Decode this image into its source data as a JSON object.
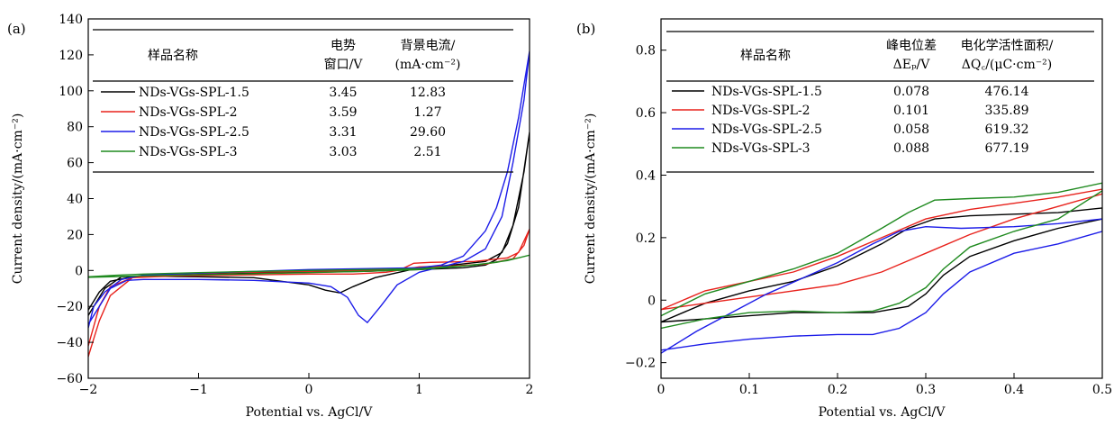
{
  "chart_data": [
    {
      "type": "line",
      "panel_label": "(a)",
      "xlabel": "Potential vs. AgCl/V",
      "ylabel": "Current density/(mA·cm⁻²)",
      "xlim": [
        -2,
        2
      ],
      "ylim": [
        -60,
        140
      ],
      "x_ticks": [
        -2,
        -1,
        0,
        1,
        2
      ],
      "x_tick_labels": [
        "−2",
        "−1",
        "0",
        "1",
        "2"
      ],
      "y_ticks": [
        -60,
        -40,
        -20,
        0,
        20,
        40,
        60,
        80,
        100,
        120,
        140
      ],
      "y_tick_labels": [
        "−60",
        "−40",
        "−20",
        "0",
        "20",
        "40",
        "60",
        "80",
        "100",
        "120",
        "140"
      ],
      "grid": false,
      "table": {
        "headers": [
          [
            "样品名称"
          ],
          [
            "电势",
            "窗口/V"
          ],
          [
            "背景电流/",
            "(mA·cm⁻²)"
          ]
        ],
        "rows": [
          {
            "name": "NDs-VGs-SPL-1.5",
            "v1": "3.45",
            "v2": "12.83",
            "color": "#000000"
          },
          {
            "name": "NDs-VGs-SPL-2",
            "v1": "3.59",
            "v2": "1.27",
            "color": "#e8221c"
          },
          {
            "name": "NDs-VGs-SPL-2.5",
            "v1": "3.31",
            "v2": "29.60",
            "color": "#1c1ce8"
          },
          {
            "name": "NDs-VGs-SPL-3",
            "v1": "3.03",
            "v2": "2.51",
            "color": "#1f8a1f"
          }
        ]
      },
      "series": [
        {
          "name": "NDs-VGs-SPL-1.5",
          "color": "#000000",
          "points": [
            [
              -2,
              -22
            ],
            [
              -1.9,
              -12
            ],
            [
              -1.8,
              -6
            ],
            [
              -1.6,
              -3.5
            ],
            [
              -1.0,
              -2.2
            ],
            [
              -0.5,
              -1.5
            ],
            [
              0,
              -1
            ],
            [
              0.5,
              -0.5
            ],
            [
              1.0,
              0.5
            ],
            [
              1.4,
              1.5
            ],
            [
              1.6,
              3
            ],
            [
              1.7,
              6
            ],
            [
              1.8,
              15
            ],
            [
              1.9,
              35
            ],
            [
              2,
              77
            ],
            [
              1.95,
              55
            ],
            [
              1.85,
              25
            ],
            [
              1.75,
              10
            ],
            [
              1.6,
              5
            ],
            [
              1.3,
              3
            ],
            [
              1.0,
              1.5
            ],
            [
              0.6,
              -4
            ],
            [
              0.4,
              -9
            ],
            [
              0.28,
              -12.5
            ],
            [
              0.15,
              -11
            ],
            [
              0,
              -8
            ],
            [
              -0.5,
              -4
            ],
            [
              -1.0,
              -3.5
            ],
            [
              -1.5,
              -3.2
            ],
            [
              -1.7,
              -3.5
            ],
            [
              -1.85,
              -10
            ],
            [
              -2,
              -25
            ]
          ]
        },
        {
          "name": "NDs-VGs-SPL-2",
          "color": "#e8221c",
          "points": [
            [
              -2,
              -48
            ],
            [
              -1.95,
              -38
            ],
            [
              -1.9,
              -28
            ],
            [
              -1.8,
              -14
            ],
            [
              -1.6,
              -4
            ],
            [
              -1.2,
              -2
            ],
            [
              -0.6,
              -1
            ],
            [
              0,
              -0.5
            ],
            [
              0.5,
              0
            ],
            [
              0.85,
              1
            ],
            [
              0.95,
              4
            ],
            [
              1.1,
              4.5
            ],
            [
              1.5,
              5
            ],
            [
              1.8,
              7
            ],
            [
              1.9,
              10
            ],
            [
              2,
              23
            ],
            [
              1.95,
              14
            ],
            [
              1.85,
              6.5
            ],
            [
              1.6,
              3.5
            ],
            [
              1.3,
              2.5
            ],
            [
              1.0,
              2
            ],
            [
              0.7,
              -1
            ],
            [
              0.4,
              -2
            ],
            [
              0,
              -2
            ],
            [
              -0.6,
              -2.5
            ],
            [
              -1.2,
              -3
            ],
            [
              -1.6,
              -4
            ],
            [
              -1.8,
              -9
            ],
            [
              -1.9,
              -20
            ],
            [
              -2,
              -42
            ]
          ]
        },
        {
          "name": "NDs-VGs-SPL-2.5",
          "color": "#1c1ce8",
          "points": [
            [
              -2,
              -32
            ],
            [
              -1.95,
              -20
            ],
            [
              -1.85,
              -12
            ],
            [
              -1.7,
              -5
            ],
            [
              -1.5,
              -2.5
            ],
            [
              -1.0,
              -1.5
            ],
            [
              0,
              0.5
            ],
            [
              0.5,
              1
            ],
            [
              1.0,
              1.5
            ],
            [
              1.2,
              3
            ],
            [
              1.4,
              8
            ],
            [
              1.6,
              22
            ],
            [
              1.7,
              35
            ],
            [
              1.8,
              55
            ],
            [
              1.9,
              85
            ],
            [
              2,
              122
            ],
            [
              1.95,
              95
            ],
            [
              1.85,
              60
            ],
            [
              1.75,
              30
            ],
            [
              1.6,
              12
            ],
            [
              1.4,
              5
            ],
            [
              1.2,
              2
            ],
            [
              1.0,
              -1
            ],
            [
              0.8,
              -8
            ],
            [
              0.65,
              -20
            ],
            [
              0.53,
              -29
            ],
            [
              0.45,
              -25
            ],
            [
              0.35,
              -15
            ],
            [
              0.2,
              -9
            ],
            [
              0,
              -7
            ],
            [
              -0.5,
              -5.5
            ],
            [
              -1.0,
              -5
            ],
            [
              -1.5,
              -5
            ],
            [
              -1.65,
              -5.5
            ],
            [
              -1.8,
              -10
            ],
            [
              -1.9,
              -20
            ],
            [
              -2,
              -30
            ]
          ]
        },
        {
          "name": "NDs-VGs-SPL-3",
          "color": "#1f8a1f",
          "points": [
            [
              -2,
              -3.5
            ],
            [
              -1.8,
              -2.8
            ],
            [
              -1.5,
              -2
            ],
            [
              -1.0,
              -1.2
            ],
            [
              -0.5,
              -0.5
            ],
            [
              0,
              0
            ],
            [
              0.5,
              0.5
            ],
            [
              1.0,
              1
            ],
            [
              1.5,
              3
            ],
            [
              1.8,
              5.5
            ],
            [
              2,
              8.5
            ],
            [
              1.9,
              7
            ],
            [
              1.7,
              4.5
            ],
            [
              1.4,
              2.5
            ],
            [
              1.0,
              0.5
            ],
            [
              0.5,
              -0.5
            ],
            [
              0,
              -1.2
            ],
            [
              -0.5,
              -1.8
            ],
            [
              -1.0,
              -2.4
            ],
            [
              -1.5,
              -3
            ],
            [
              -2,
              -3.8
            ]
          ]
        }
      ]
    },
    {
      "type": "line",
      "panel_label": "(b)",
      "xlabel": "Potential vs. AgCl/V",
      "ylabel": "Current density/(mA·cm⁻²)",
      "xlim": [
        0,
        0.5
      ],
      "ylim": [
        -0.25,
        0.9
      ],
      "x_ticks": [
        0,
        0.1,
        0.2,
        0.3,
        0.4,
        0.5
      ],
      "x_tick_labels": [
        "0",
        "0.1",
        "0.2",
        "0.3",
        "0.4",
        "0.5"
      ],
      "y_ticks": [
        -0.2,
        0,
        0.2,
        0.4,
        0.6,
        0.8
      ],
      "y_tick_labels": [
        "−0.2",
        "0",
        "0.2",
        "0.4",
        "0.6",
        "0.8"
      ],
      "grid": false,
      "table": {
        "headers": [
          [
            "样品名称"
          ],
          [
            "峰电位差",
            "ΔEₚ/V"
          ],
          [
            "电化学活性面积/",
            "ΔQ꜀/(μC·cm⁻²)"
          ]
        ],
        "rows": [
          {
            "name": "NDs-VGs-SPL-1.5",
            "v1": "0.078",
            "v2": "476.14",
            "color": "#000000"
          },
          {
            "name": "NDs-VGs-SPL-2",
            "v1": "0.101",
            "v2": "335.89",
            "color": "#e8221c"
          },
          {
            "name": "NDs-VGs-SPL-2.5",
            "v1": "0.058",
            "v2": "619.32",
            "color": "#1c1ce8"
          },
          {
            "name": "NDs-VGs-SPL-3",
            "v1": "0.088",
            "v2": "677.19",
            "color": "#1f8a1f"
          }
        ]
      },
      "series": [
        {
          "name": "NDs-VGs-SPL-1.5",
          "color": "#000000",
          "points": [
            [
              0,
              -0.07
            ],
            [
              0.05,
              -0.01
            ],
            [
              0.1,
              0.03
            ],
            [
              0.15,
              0.06
            ],
            [
              0.2,
              0.11
            ],
            [
              0.25,
              0.18
            ],
            [
              0.28,
              0.23
            ],
            [
              0.31,
              0.26
            ],
            [
              0.35,
              0.27
            ],
            [
              0.4,
              0.275
            ],
            [
              0.45,
              0.28
            ],
            [
              0.5,
              0.295
            ],
            [
              0.5,
              0.26
            ],
            [
              0.45,
              0.23
            ],
            [
              0.4,
              0.19
            ],
            [
              0.35,
              0.14
            ],
            [
              0.32,
              0.08
            ],
            [
              0.3,
              0.02
            ],
            [
              0.28,
              -0.02
            ],
            [
              0.24,
              -0.04
            ],
            [
              0.2,
              -0.04
            ],
            [
              0.15,
              -0.04
            ],
            [
              0.1,
              -0.05
            ],
            [
              0.05,
              -0.06
            ],
            [
              0,
              -0.07
            ]
          ]
        },
        {
          "name": "NDs-VGs-SPL-2",
          "color": "#e8221c",
          "points": [
            [
              0,
              -0.03
            ],
            [
              0.05,
              0.03
            ],
            [
              0.1,
              0.06
            ],
            [
              0.15,
              0.09
            ],
            [
              0.2,
              0.14
            ],
            [
              0.25,
              0.2
            ],
            [
              0.3,
              0.26
            ],
            [
              0.35,
              0.29
            ],
            [
              0.4,
              0.31
            ],
            [
              0.45,
              0.33
            ],
            [
              0.5,
              0.355
            ],
            [
              0.5,
              0.34
            ],
            [
              0.45,
              0.3
            ],
            [
              0.4,
              0.26
            ],
            [
              0.35,
              0.21
            ],
            [
              0.3,
              0.15
            ],
            [
              0.25,
              0.09
            ],
            [
              0.2,
              0.05
            ],
            [
              0.15,
              0.03
            ],
            [
              0.1,
              0.01
            ],
            [
              0.05,
              -0.01
            ],
            [
              0,
              -0.03
            ]
          ]
        },
        {
          "name": "NDs-VGs-SPL-2.5",
          "color": "#1c1ce8",
          "points": [
            [
              0,
              -0.17
            ],
            [
              0.04,
              -0.1
            ],
            [
              0.08,
              -0.04
            ],
            [
              0.12,
              0.02
            ],
            [
              0.16,
              0.07
            ],
            [
              0.2,
              0.12
            ],
            [
              0.24,
              0.18
            ],
            [
              0.27,
              0.22
            ],
            [
              0.3,
              0.235
            ],
            [
              0.34,
              0.23
            ],
            [
              0.4,
              0.235
            ],
            [
              0.45,
              0.245
            ],
            [
              0.5,
              0.26
            ],
            [
              0.5,
              0.22
            ],
            [
              0.45,
              0.18
            ],
            [
              0.4,
              0.15
            ],
            [
              0.35,
              0.09
            ],
            [
              0.32,
              0.02
            ],
            [
              0.3,
              -0.04
            ],
            [
              0.27,
              -0.09
            ],
            [
              0.24,
              -0.11
            ],
            [
              0.2,
              -0.11
            ],
            [
              0.15,
              -0.115
            ],
            [
              0.1,
              -0.125
            ],
            [
              0.05,
              -0.14
            ],
            [
              0,
              -0.16
            ]
          ]
        },
        {
          "name": "NDs-VGs-SPL-3",
          "color": "#1f8a1f",
          "points": [
            [
              0,
              -0.05
            ],
            [
              0.05,
              0.02
            ],
            [
              0.1,
              0.06
            ],
            [
              0.15,
              0.1
            ],
            [
              0.2,
              0.15
            ],
            [
              0.25,
              0.23
            ],
            [
              0.28,
              0.28
            ],
            [
              0.31,
              0.32
            ],
            [
              0.35,
              0.325
            ],
            [
              0.4,
              0.33
            ],
            [
              0.45,
              0.345
            ],
            [
              0.5,
              0.375
            ],
            [
              0.5,
              0.35
            ],
            [
              0.45,
              0.26
            ],
            [
              0.4,
              0.22
            ],
            [
              0.35,
              0.17
            ],
            [
              0.32,
              0.1
            ],
            [
              0.3,
              0.04
            ],
            [
              0.27,
              -0.01
            ],
            [
              0.24,
              -0.035
            ],
            [
              0.2,
              -0.04
            ],
            [
              0.15,
              -0.035
            ],
            [
              0.1,
              -0.04
            ],
            [
              0.05,
              -0.06
            ],
            [
              0,
              -0.09
            ]
          ]
        }
      ]
    }
  ]
}
